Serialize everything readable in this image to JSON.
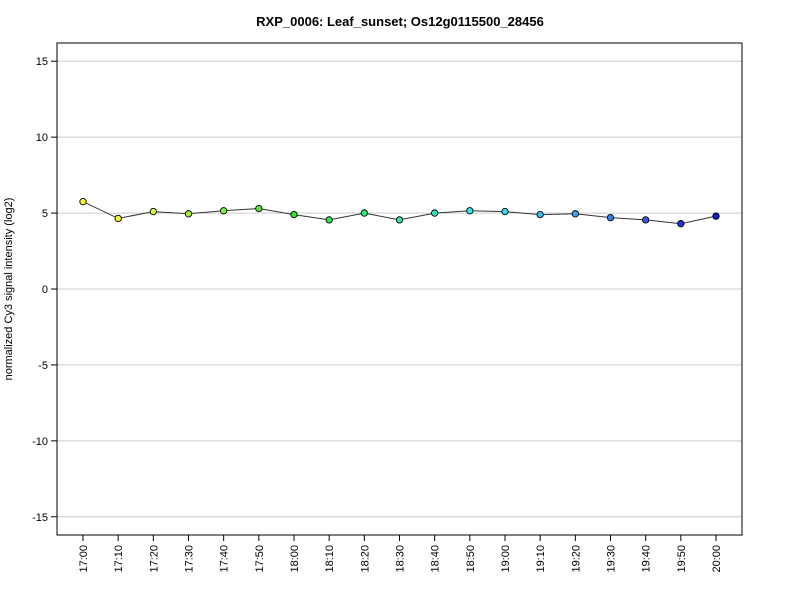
{
  "chart_data": {
    "type": "line",
    "title": "RXP_0006: Leaf_sunset; Os12g0115500_28456",
    "xlabel": "",
    "ylabel": "normalized Cy3 signal intensity (log2)",
    "x": [
      "17:00",
      "17:10",
      "17:20",
      "17:30",
      "17:40",
      "17:50",
      "18:00",
      "18:10",
      "18:20",
      "18:30",
      "18:40",
      "18:50",
      "19:00",
      "19:10",
      "19:20",
      "19:30",
      "19:40",
      "19:50",
      "20:00"
    ],
    "values": [
      5.75,
      4.65,
      5.1,
      4.95,
      5.15,
      5.3,
      4.9,
      4.55,
      5.0,
      4.55,
      5.0,
      5.15,
      5.1,
      4.9,
      4.95,
      4.7,
      4.55,
      4.3,
      4.8
    ],
    "point_colors": [
      "#ffff33",
      "#f0ff33",
      "#ccff33",
      "#a6f533",
      "#80f033",
      "#5ae633",
      "#33e633",
      "#33e64d",
      "#33e673",
      "#33e699",
      "#33e6bf",
      "#33e6e6",
      "#33d9f0",
      "#33bff5",
      "#33a6f5",
      "#3380f0",
      "#3359e6",
      "#2633d9",
      "#1a1acc"
    ],
    "yticks": [
      15,
      10,
      5,
      0,
      -5,
      -10,
      -15
    ],
    "ytick_labels": [
      "15",
      "10",
      "5",
      "0",
      "-5",
      "-10",
      "-15"
    ],
    "ylim": [
      -16.2,
      16.2
    ],
    "grid": "horizontal"
  }
}
